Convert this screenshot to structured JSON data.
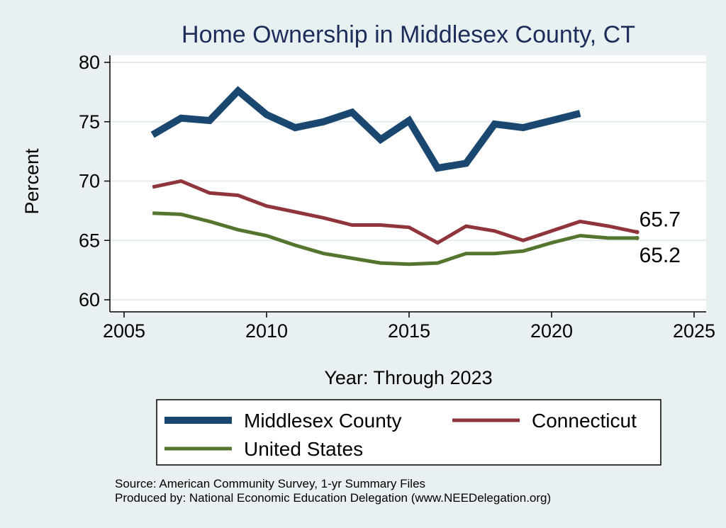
{
  "chart_data": {
    "type": "line",
    "title": "Home Ownership in Middlesex County, CT",
    "xlabel": "Year: Through 2023",
    "ylabel": "Percent",
    "xlim": [
      2005,
      2025
    ],
    "ylim": [
      60,
      80
    ],
    "x_ticks": [
      2005,
      2010,
      2015,
      2020,
      2025
    ],
    "y_ticks": [
      60,
      65,
      70,
      75,
      80
    ],
    "grid": true,
    "legend_position": "bottom",
    "series": [
      {
        "name": "Middlesex County",
        "color": "#1a476f",
        "x": [
          2006,
          2007,
          2008,
          2009,
          2010,
          2011,
          2012,
          2013,
          2014,
          2015,
          2016,
          2017,
          2018,
          2019,
          2020,
          2021
        ],
        "values": [
          73.9,
          75.3,
          75.1,
          77.6,
          75.6,
          74.5,
          75.0,
          75.8,
          73.5,
          75.1,
          71.1,
          71.5,
          74.8,
          74.5,
          75.1,
          75.7
        ]
      },
      {
        "name": "Connecticut",
        "color": "#90353b",
        "x": [
          2006,
          2007,
          2008,
          2009,
          2010,
          2011,
          2012,
          2013,
          2014,
          2015,
          2016,
          2017,
          2018,
          2019,
          2020,
          2021,
          2022,
          2023
        ],
        "values": [
          69.5,
          70.0,
          69.0,
          68.8,
          67.9,
          67.4,
          66.9,
          66.3,
          66.3,
          66.1,
          64.8,
          66.2,
          65.8,
          65.0,
          65.8,
          66.6,
          66.2,
          65.7
        ]
      },
      {
        "name": "United States",
        "color": "#55752f",
        "x": [
          2006,
          2007,
          2008,
          2009,
          2010,
          2011,
          2012,
          2013,
          2014,
          2015,
          2016,
          2017,
          2018,
          2019,
          2020,
          2021,
          2022,
          2023
        ],
        "values": [
          67.3,
          67.2,
          66.6,
          65.9,
          65.4,
          64.6,
          63.9,
          63.5,
          63.1,
          63.0,
          63.1,
          63.9,
          63.9,
          64.1,
          64.8,
          65.4,
          65.2,
          65.2
        ]
      }
    ],
    "annotations": [
      {
        "text": "65.7",
        "series": "Connecticut",
        "x": 2023,
        "y": 65.7
      },
      {
        "text": "65.2",
        "series": "United States",
        "x": 2023,
        "y": 65.2
      }
    ]
  },
  "footer": {
    "source": "Source: American Community Survey, 1-yr Summary Files",
    "produced_by": "Produced by: National Economic Education Delegation (www.NEEDelegation.org)"
  }
}
